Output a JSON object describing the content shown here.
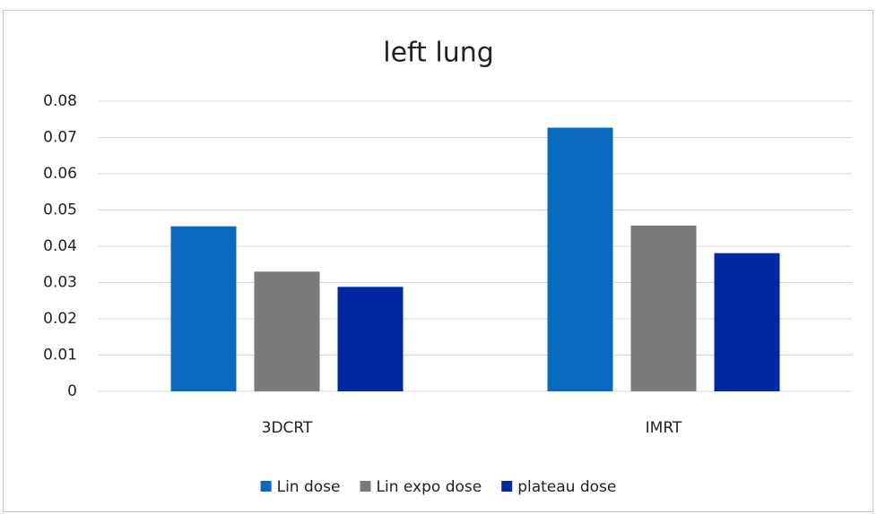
{
  "chart_data": {
    "type": "bar",
    "title": "left lung",
    "categories": [
      "3DCRT",
      "IMRT"
    ],
    "series": [
      {
        "name": "Lin dose",
        "color": "#0a6ac0",
        "values": [
          0.0455,
          0.0727
        ]
      },
      {
        "name": "Lin expo dose",
        "color": "#7a7a7a",
        "values": [
          0.033,
          0.0457
        ]
      },
      {
        "name": "plateau dose",
        "color": "#0026a0",
        "values": [
          0.0288,
          0.0381
        ]
      }
    ],
    "ylim": [
      0,
      0.08
    ],
    "yticks": [
      0,
      0.01,
      0.02,
      0.03,
      0.04,
      0.05,
      0.06,
      0.07,
      0.08
    ],
    "grid": true,
    "legend": "bottom"
  }
}
